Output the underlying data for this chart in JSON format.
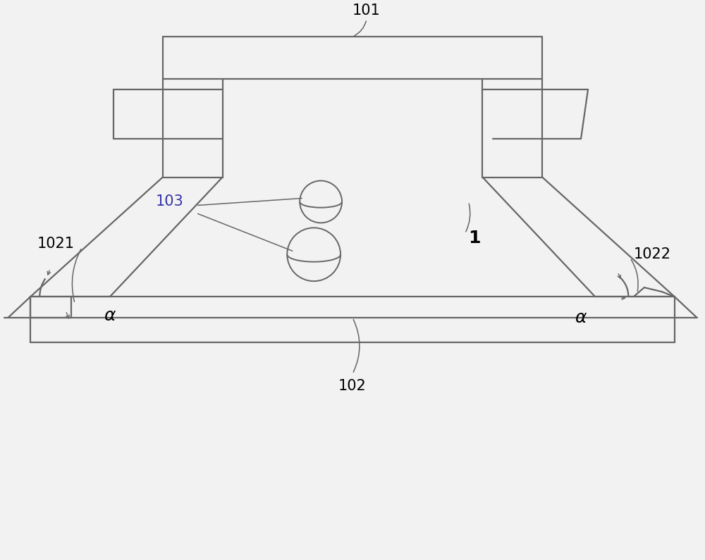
{
  "bg_color": "#f2f2f2",
  "line_color": "#666666",
  "lw": 1.6,
  "label_fs": 15,
  "alpha_fs": 18
}
